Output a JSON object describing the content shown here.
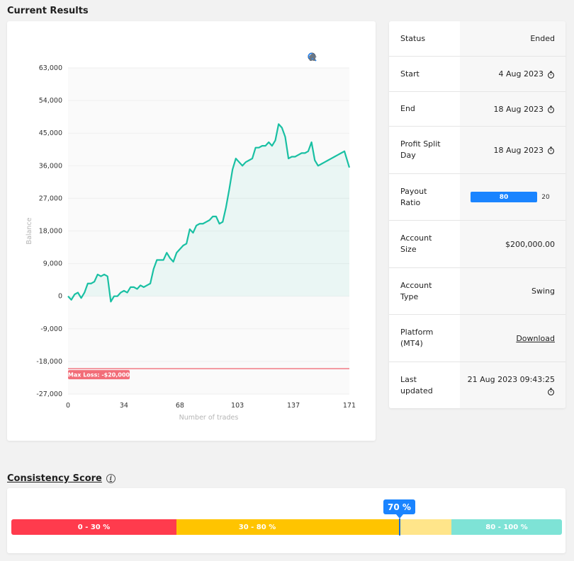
{
  "current_results": {
    "title": "Current Results"
  },
  "chart_data": {
    "type": "area",
    "ylabel": "Balance",
    "xlabel": "Number of trades",
    "x_ticks": [
      "0",
      "34",
      "68",
      "103",
      "137",
      "171"
    ],
    "y_ticks": [
      "63,000",
      "54,000",
      "45,000",
      "36,000",
      "27,000",
      "18,000",
      "9,000",
      "0",
      "-9,000",
      "-18,000",
      "-27,000"
    ],
    "xlim": [
      0,
      171
    ],
    "ylim": [
      -27000,
      63000
    ],
    "max_loss": {
      "value": -20000,
      "label": "Max Loss: -$20,000"
    },
    "line_color": "#19c0a3",
    "x": [
      0,
      2,
      4,
      6,
      8,
      10,
      12,
      14,
      16,
      18,
      20,
      22,
      24,
      26,
      28,
      30,
      32,
      34,
      36,
      38,
      40,
      42,
      44,
      46,
      48,
      50,
      52,
      54,
      56,
      58,
      60,
      62,
      64,
      66,
      68,
      70,
      72,
      74,
      76,
      78,
      80,
      82,
      84,
      86,
      88,
      90,
      92,
      94,
      96,
      98,
      100,
      102,
      104,
      106,
      108,
      110,
      112,
      114,
      116,
      118,
      120,
      122,
      124,
      126,
      128,
      130,
      132,
      134,
      136,
      138,
      140,
      142,
      144,
      146,
      148,
      150,
      152,
      154,
      156,
      158,
      160,
      162,
      164,
      166,
      168,
      171
    ],
    "values": [
      0,
      -1000,
      500,
      1000,
      -500,
      1000,
      3500,
      3500,
      4000,
      6000,
      5500,
      6000,
      5500,
      -1500,
      0,
      0,
      1000,
      1500,
      1000,
      2500,
      2500,
      2000,
      3000,
      2500,
      3000,
      3500,
      7500,
      10000,
      10000,
      10000,
      12000,
      10500,
      9500,
      12000,
      13000,
      14000,
      14500,
      18500,
      17500,
      19500,
      20000,
      20000,
      20500,
      21000,
      22000,
      22000,
      20000,
      20500,
      24500,
      29500,
      35000,
      38000,
      37000,
      36000,
      37000,
      37500,
      38000,
      41000,
      41000,
      41500,
      41500,
      42500,
      41500,
      43000,
      47500,
      46500,
      44000,
      38000,
      38500,
      38500,
      39000,
      39500,
      39500,
      40000,
      42500,
      37500,
      36000,
      36500,
      37000,
      37500,
      38000,
      38500,
      39000,
      39500,
      40000,
      35500
    ]
  },
  "chart_toolbar": {
    "icons": [
      "zoom-in-icon",
      "zoom-out-icon",
      "magnify-icon",
      "home-icon"
    ]
  },
  "account_info": {
    "rows": [
      {
        "label": "Status",
        "value": "Ended"
      },
      {
        "label": "Start",
        "value": "4 Aug 2023"
      },
      {
        "label": "End",
        "value": "18 Aug 2023"
      },
      {
        "label": "Profit Split\nDay",
        "value": "18 Aug 2023"
      },
      {
        "label": "Payout\nRatio",
        "value_a": "80",
        "value_b": "20",
        "ratio": 0.8
      },
      {
        "label": "Account\nSize",
        "value": "$200,000.00"
      },
      {
        "label": "Account\nType",
        "value": "Swing"
      },
      {
        "label": "Platform\n(MT4)",
        "value": "Download"
      },
      {
        "label": "Last\nupdated",
        "value": "21 Aug 2023 09:43:25"
      }
    ]
  },
  "consistency": {
    "title": "Consistency Score",
    "score": "70 %",
    "score_value": 70,
    "segments": [
      {
        "label": "0 - 30 %",
        "color": "#ff3b4d"
      },
      {
        "label": "30 - 80 %",
        "color": "#ffc400"
      },
      {
        "label": "80 - 100 %",
        "color": "#7ee3d6"
      }
    ]
  },
  "colors": {
    "accent": "#1a84ff",
    "grid": "#efefef",
    "max_loss": "#f17a84"
  }
}
